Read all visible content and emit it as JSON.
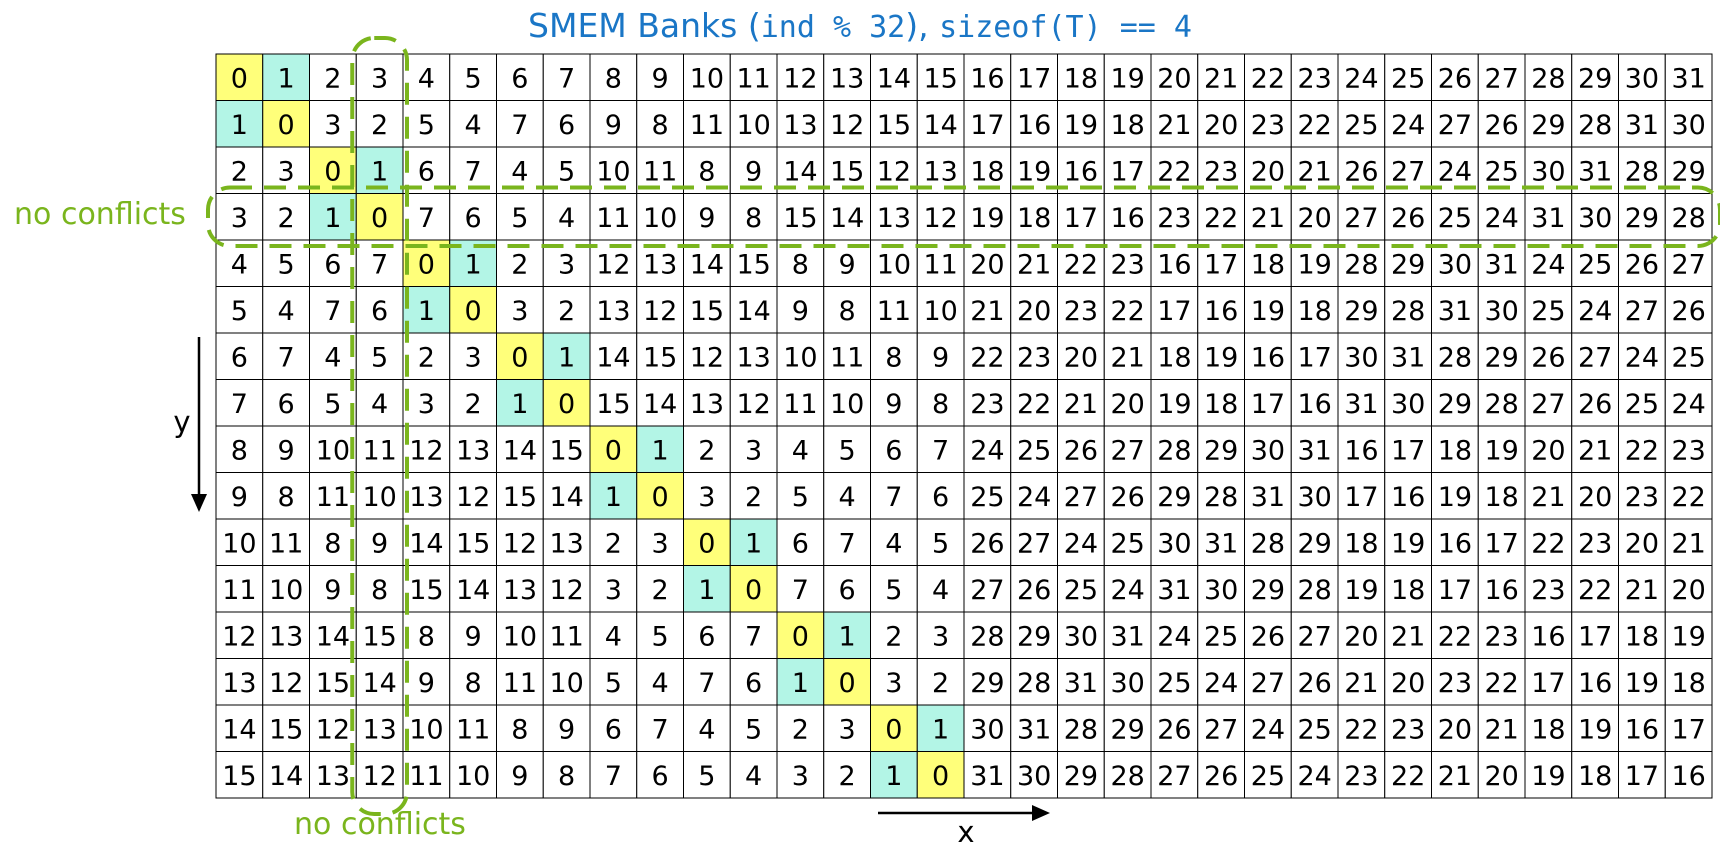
{
  "title": {
    "prefix": "SMEM Banks (",
    "code1": "ind % 32",
    "middle": "), ",
    "code2": "sizeof(T) == 4"
  },
  "grid": {
    "rows": 16,
    "cols": 32,
    "rule": "value = row XOR col",
    "highlight_pairs": [
      [
        0,
        1
      ],
      [
        2,
        3
      ],
      [
        4,
        5
      ],
      [
        6,
        7
      ],
      [
        8,
        9
      ],
      [
        10,
        11
      ],
      [
        12,
        13
      ],
      [
        14,
        15
      ]
    ]
  },
  "annotations": {
    "row_label": "no conflicts",
    "col_label": "no conflicts",
    "row_index": 3,
    "col_index": 3
  },
  "axes": {
    "x_label": "x",
    "y_label": "y"
  },
  "colors": {
    "yellow": "#ffff7a",
    "cyan": "#b3f5e6",
    "green": "#7ab51d",
    "title": "#1a76c6",
    "border": "#000000"
  }
}
